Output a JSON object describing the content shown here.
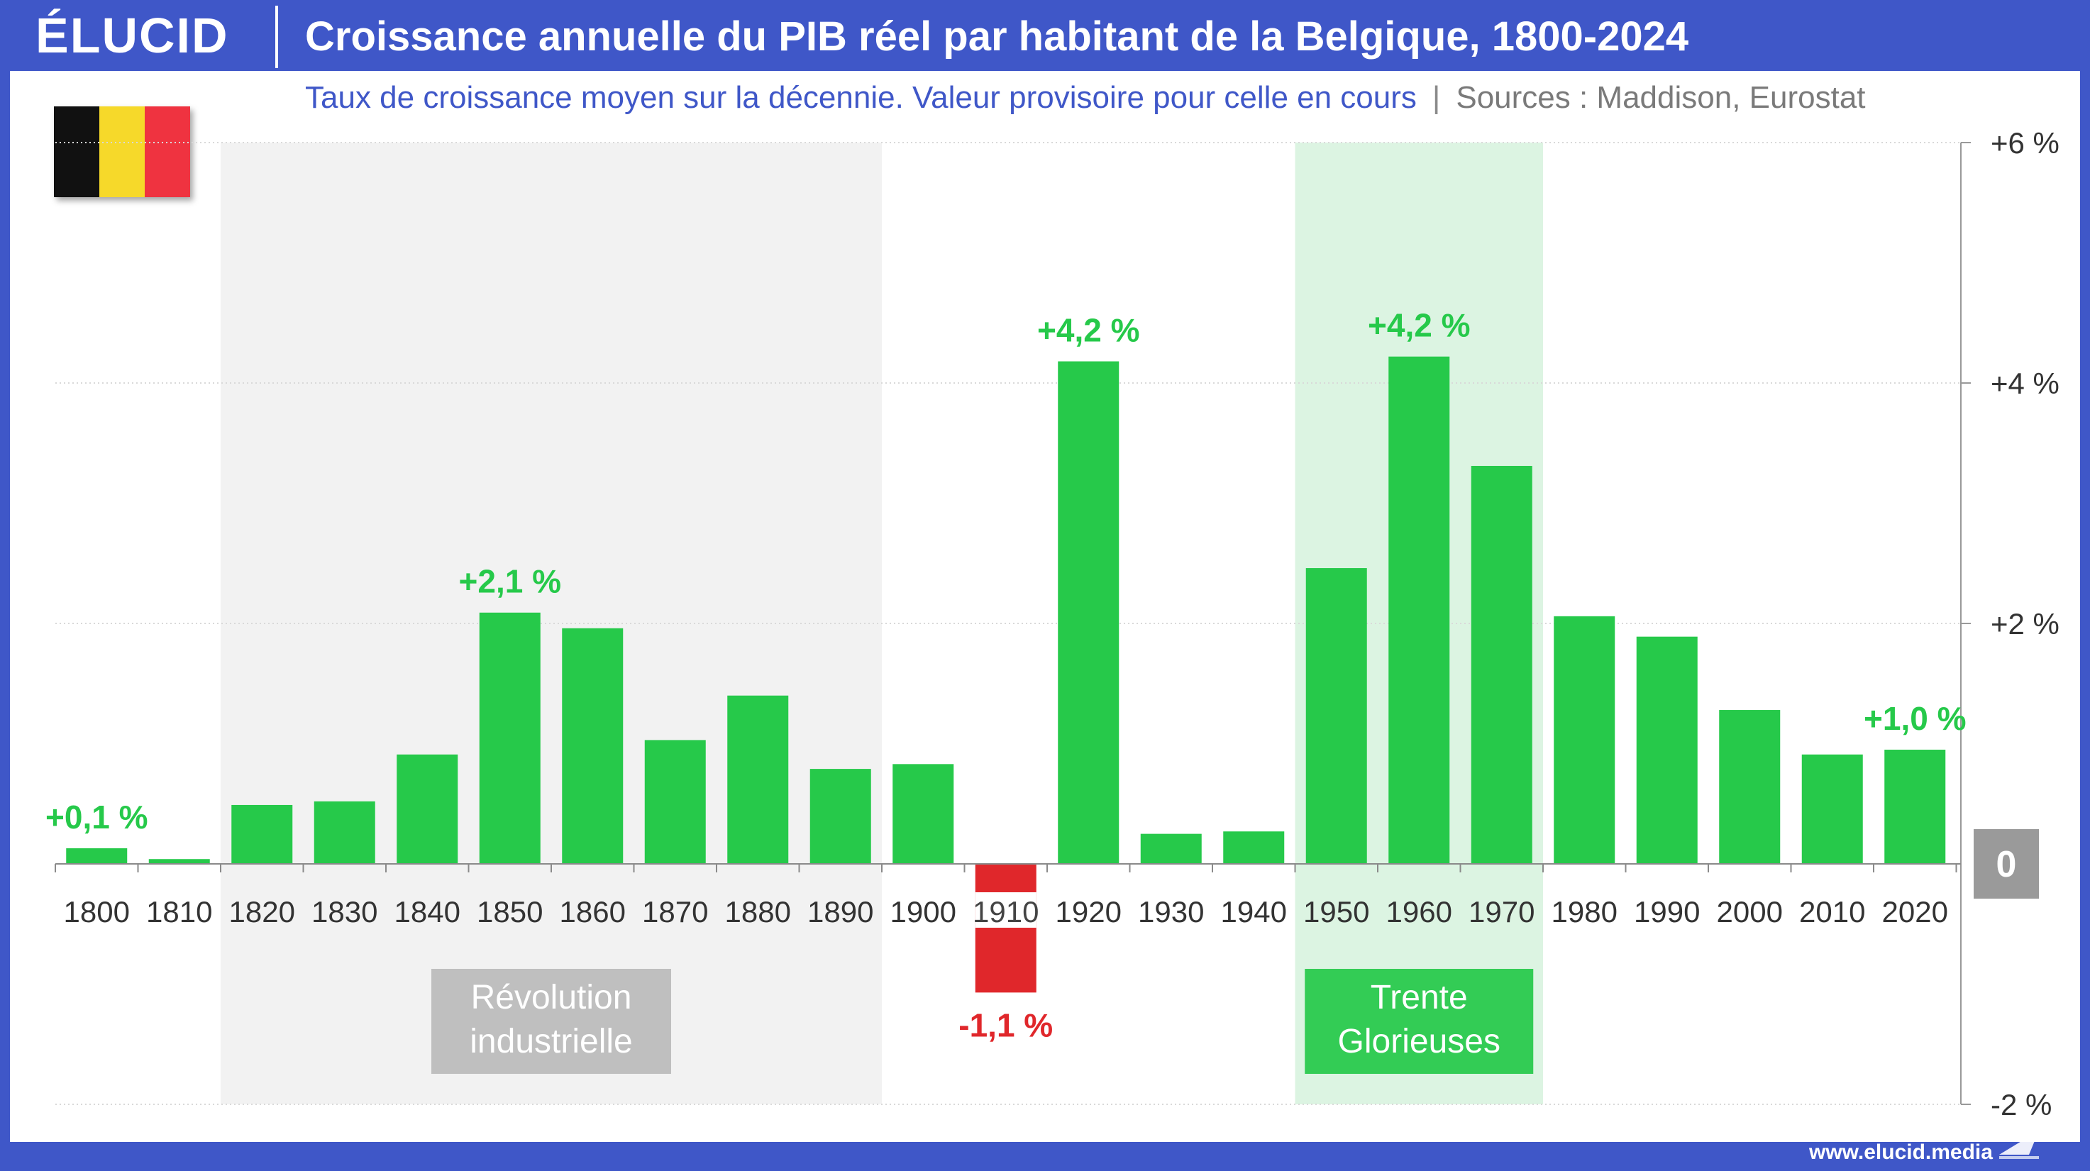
{
  "header": {
    "logo": "ÉLUCID",
    "title": "Croissance annuelle du PIB réel par habitant de la Belgique, 1800-2024"
  },
  "subtitle": {
    "description": "Taux de croissance moyen sur la décennie. Valeur provisoire pour celle en cours",
    "separator": "|",
    "sources": "Sources :  Maddison, Eurostat"
  },
  "flag": {
    "colors": [
      "#111111",
      "#f6d92a",
      "#ef3340"
    ]
  },
  "footer": {
    "url": "www.elucid.media"
  },
  "colors": {
    "positive": "#26c94a",
    "negative": "#e0272b",
    "period_grey": "#f2f2f2",
    "period_green": "#dcf4e2",
    "label_grey": "#bfbfbf",
    "label_green": "#33cc55",
    "zero_badge": "#9a9a9a",
    "axis_text": "#333333"
  },
  "chart_data": {
    "type": "bar",
    "categories": [
      "1800",
      "1810",
      "1820",
      "1830",
      "1840",
      "1850",
      "1860",
      "1870",
      "1880",
      "1890",
      "1900",
      "1910",
      "1920",
      "1930",
      "1940",
      "1950",
      "1960",
      "1970",
      "1980",
      "1990",
      "2000",
      "2010",
      "2020"
    ],
    "values": [
      0.13,
      0.04,
      0.49,
      0.52,
      0.91,
      2.09,
      1.96,
      1.03,
      1.4,
      0.79,
      0.83,
      -1.07,
      4.18,
      0.25,
      0.27,
      2.46,
      4.22,
      3.31,
      2.06,
      1.89,
      1.28,
      0.91,
      0.95
    ],
    "ylim": [
      -2,
      6
    ],
    "y_axis": {
      "position": "right",
      "ticks": [
        6,
        4,
        2,
        -2
      ],
      "tick_labels": [
        "+6 %",
        "+4 %",
        "+2 %",
        "-2 %"
      ],
      "zero_label": "0"
    },
    "grid": true,
    "data_labels": [
      {
        "category": "1800",
        "text": "+0,1 %"
      },
      {
        "category": "1850",
        "text": "+2,1 %"
      },
      {
        "category": "1910",
        "text": "-1,1 %"
      },
      {
        "category": "1920",
        "text": "+4,2 %"
      },
      {
        "category": "1960",
        "text": "+4,2 %"
      },
      {
        "category": "2020",
        "text": "+1,0 %"
      }
    ],
    "periods": [
      {
        "label_lines": [
          "Révolution",
          "industrielle"
        ],
        "from": "1820",
        "to": "1890",
        "style": "grey"
      },
      {
        "label_lines": [
          "Trente",
          "Glorieuses"
        ],
        "from": "1950",
        "to": "1970",
        "style": "green"
      }
    ]
  }
}
